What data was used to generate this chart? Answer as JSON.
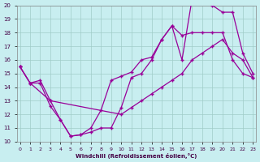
{
  "xlabel": "Windchill (Refroidissement éolien,°C)",
  "bg_color": "#c8eef0",
  "grid_color": "#a0ccc8",
  "line_color": "#990099",
  "xlim_min": -0.3,
  "xlim_max": 23.3,
  "ylim_min": 10,
  "ylim_max": 20,
  "xticks": [
    0,
    1,
    2,
    3,
    4,
    5,
    6,
    7,
    8,
    9,
    10,
    11,
    12,
    13,
    14,
    15,
    16,
    17,
    18,
    19,
    20,
    21,
    22,
    23
  ],
  "yticks": [
    10,
    11,
    12,
    13,
    14,
    15,
    16,
    17,
    18,
    19,
    20
  ],
  "line1_x": [
    0,
    1,
    2,
    3,
    4,
    5,
    6,
    7,
    8,
    9,
    10,
    11,
    12,
    13,
    14,
    15,
    16,
    17,
    18,
    19,
    20,
    21,
    22,
    23
  ],
  "line1_y": [
    15.5,
    14.3,
    14.5,
    13.0,
    11.6,
    10.4,
    10.5,
    11.0,
    12.3,
    14.5,
    14.8,
    15.1,
    16.0,
    16.2,
    17.5,
    18.5,
    17.8,
    18.0,
    18.0,
    18.0,
    18.0,
    16.0,
    15.0,
    14.7
  ],
  "line2_x": [
    0,
    1,
    2,
    3,
    4,
    5,
    6,
    7,
    8,
    9,
    10,
    11,
    12,
    13,
    14,
    15,
    16,
    17,
    18,
    19,
    20,
    21,
    22,
    23
  ],
  "line2_y": [
    15.5,
    14.3,
    14.3,
    12.6,
    11.6,
    10.4,
    10.5,
    10.7,
    11.0,
    11.0,
    12.5,
    14.7,
    15.0,
    16.0,
    17.5,
    18.5,
    16.0,
    20.5,
    20.5,
    20.0,
    19.5,
    19.5,
    16.5,
    15.0
  ],
  "line3_x": [
    0,
    1,
    3,
    10,
    11,
    12,
    13,
    14,
    15,
    16,
    17,
    18,
    19,
    20,
    21,
    22,
    23
  ],
  "line3_y": [
    15.5,
    14.3,
    13.0,
    12.0,
    12.5,
    13.0,
    13.5,
    14.0,
    14.5,
    15.0,
    16.0,
    16.5,
    17.0,
    17.5,
    16.5,
    16.0,
    14.7
  ]
}
